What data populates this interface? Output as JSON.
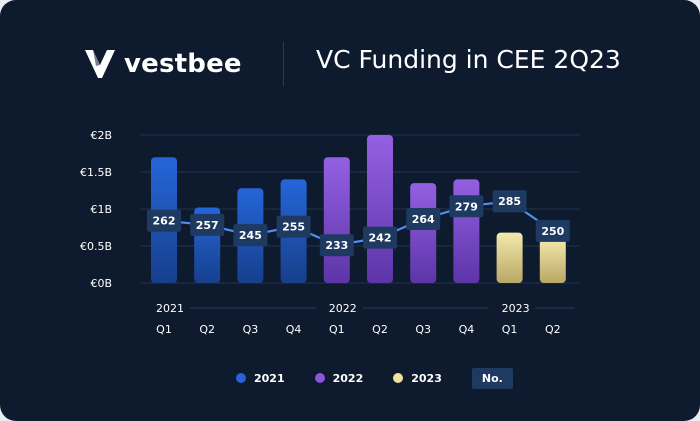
{
  "brand": {
    "name": "vestbee"
  },
  "title": "VC Funding in CEE  2Q23",
  "legend": {
    "items": [
      {
        "label": "2021",
        "color": "#2563d6"
      },
      {
        "label": "2022",
        "color": "#8a55d8"
      },
      {
        "label": "2023",
        "color": "#f0e3a0"
      }
    ],
    "count_label": "No."
  },
  "chart_data": {
    "type": "bar",
    "categories": [
      "Q1",
      "Q2",
      "Q3",
      "Q4",
      "Q1",
      "Q2",
      "Q3",
      "Q4",
      "Q1",
      "Q2"
    ],
    "years": [
      {
        "label": "2021",
        "start": 0,
        "end": 3
      },
      {
        "label": "2022",
        "start": 4,
        "end": 7
      },
      {
        "label": "2023",
        "start": 8,
        "end": 9
      }
    ],
    "values": [
      1.7,
      1.02,
      1.28,
      1.4,
      1.7,
      2.0,
      1.35,
      1.4,
      0.68,
      0.6
    ],
    "line_values": [
      262,
      257,
      245,
      255,
      233,
      242,
      264,
      279,
      285,
      250
    ],
    "y_ticks": [
      {
        "value": 0,
        "label": "€0B"
      },
      {
        "value": 0.5,
        "label": "€0.5B"
      },
      {
        "value": 1,
        "label": "€1B"
      },
      {
        "value": 1.5,
        "label": "€1.5B"
      },
      {
        "value": 2,
        "label": "€2B"
      }
    ],
    "ylim": [
      0,
      2
    ],
    "line_range": [
      225,
      290
    ],
    "colors": {
      "2021": "#2563d6",
      "2022": "#8a55d8",
      "2023": "#f0e3a0",
      "line": "#4f8ef5",
      "label_bg": "#1e3a60"
    }
  }
}
